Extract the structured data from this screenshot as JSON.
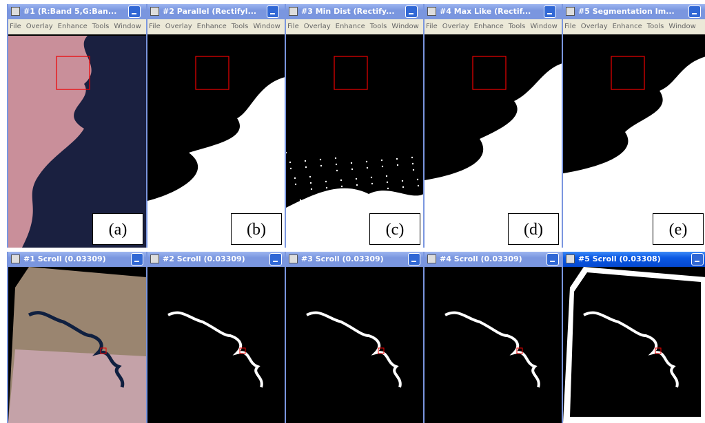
{
  "menu": [
    "File",
    "Overlay",
    "Enhance",
    "Tools",
    "Window"
  ],
  "windows": [
    {
      "title": "#1 (R:Band 5,G:Ban...",
      "label": "(a)"
    },
    {
      "title": "#2 Parallel (Rectifyl...",
      "label": "(b)"
    },
    {
      "title": "#3 Min Dist (Rectify...",
      "label": "(c)"
    },
    {
      "title": "#4 Max Like (Rectif...",
      "label": "(d)"
    },
    {
      "title": "#5 Segmentation Im...",
      "label": "(e)"
    }
  ],
  "scroll_windows": [
    {
      "title": "#1 Scroll (0.03309)"
    },
    {
      "title": "#2 Scroll (0.03309)"
    },
    {
      "title": "#3 Scroll (0.03309)"
    },
    {
      "title": "#4 Scroll (0.03309)"
    },
    {
      "title": "#5 Scroll (0.03308)"
    }
  ]
}
